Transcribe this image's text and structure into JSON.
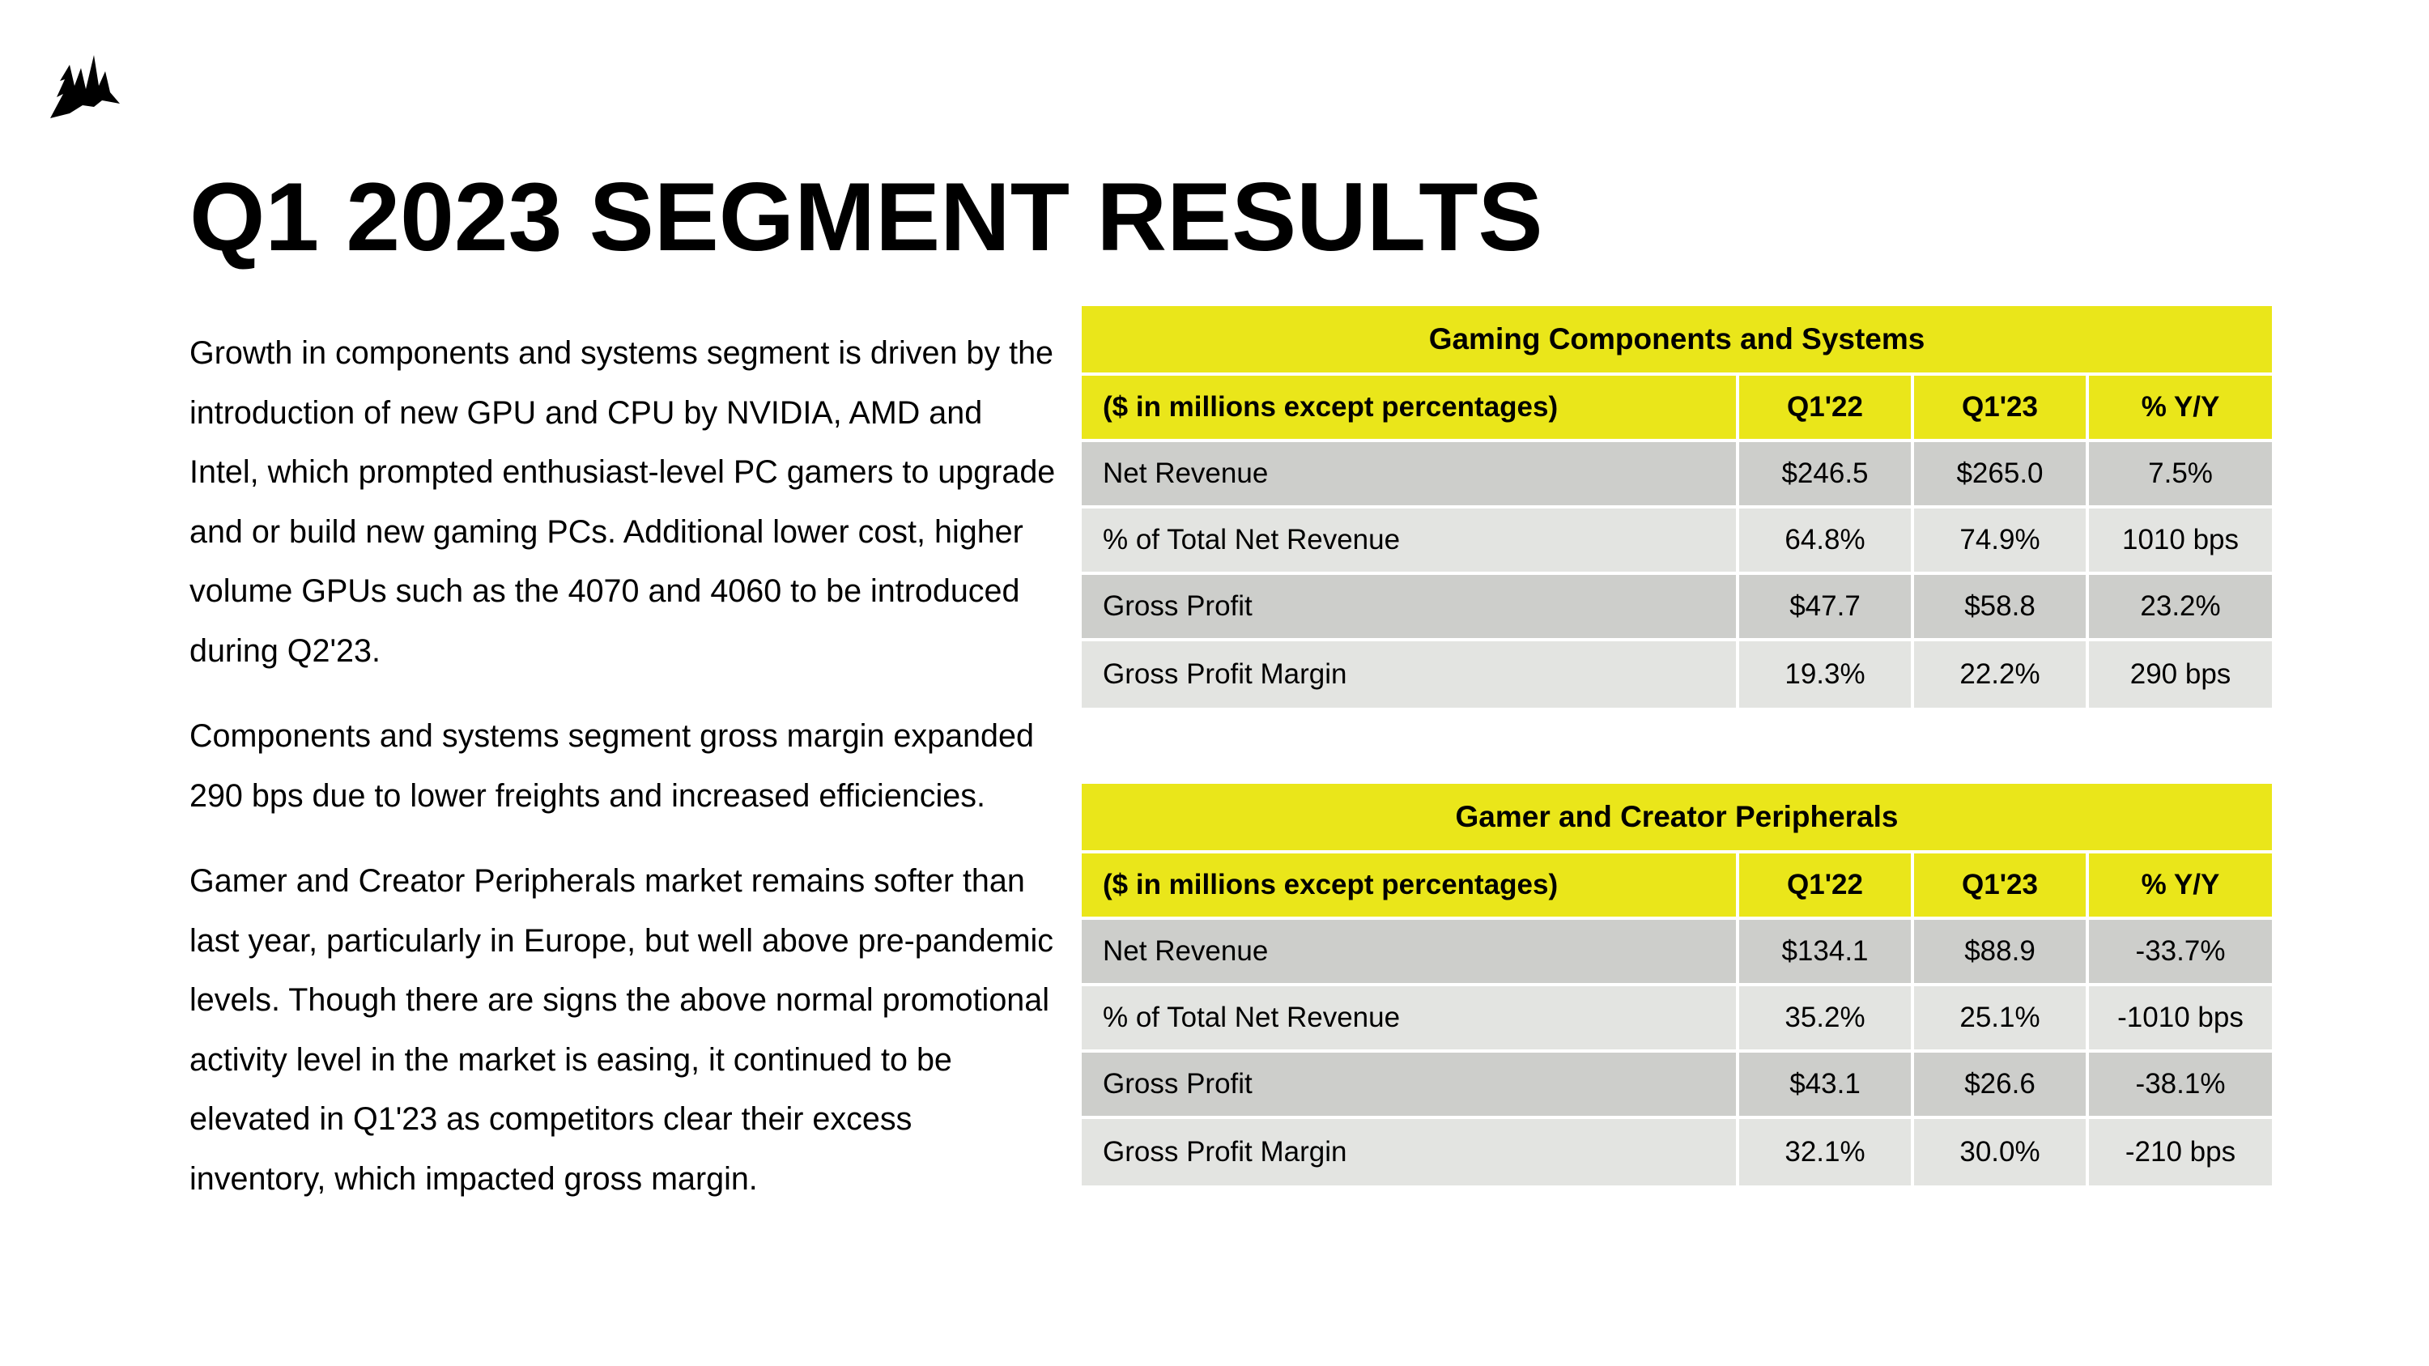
{
  "title": "Q1 2023 SEGMENT RESULTS",
  "logo": {
    "icon": "corsair-sails-logo-icon"
  },
  "paragraphs": [
    "Growth in components and systems segment is driven by the introduction of new GPU and CPU by NVIDIA, AMD and Intel, which prompted enthusiast-level PC gamers to upgrade and or build new gaming PCs.  Additional lower cost, higher volume GPUs such as the 4070 and 4060 to be introduced during Q2'23.",
    "Components and systems segment gross margin expanded 290 bps due to lower freights and increased efficiencies.",
    "Gamer and Creator Peripherals market remains softer than last year, particularly in Europe, but well above pre-pandemic levels.  Though there are signs the above normal promotional activity level in the market is easing, it continued to be elevated in Q1'23 as competitors clear their excess inventory, which impacted gross margin."
  ],
  "colors": {
    "accent_yellow": "#eae61a",
    "row_dark": "#cdcecb",
    "row_light": "#e3e4e1"
  },
  "tables": [
    {
      "caption": "Gaming Components and Systems",
      "headers": [
        "($ in millions except percentages)",
        "Q1'22",
        "Q1'23",
        "% Y/Y"
      ],
      "rows": [
        [
          "Net Revenue",
          "$246.5",
          "$265.0",
          "7.5%"
        ],
        [
          "% of Total Net Revenue",
          "64.8%",
          "74.9%",
          "1010 bps"
        ],
        [
          "Gross Profit",
          "$47.7",
          "$58.8",
          "23.2%"
        ],
        [
          "Gross Profit Margin",
          "19.3%",
          "22.2%",
          "290 bps"
        ]
      ]
    },
    {
      "caption": "Gamer and Creator Peripherals",
      "headers": [
        "($ in millions except percentages)",
        "Q1'22",
        "Q1'23",
        "% Y/Y"
      ],
      "rows": [
        [
          "Net Revenue",
          "$134.1",
          "$88.9",
          "-33.7%"
        ],
        [
          "% of Total Net Revenue",
          "35.2%",
          "25.1%",
          "-1010 bps"
        ],
        [
          "Gross Profit",
          "$43.1",
          "$26.6",
          "-38.1%"
        ],
        [
          "Gross Profit Margin",
          "32.1%",
          "30.0%",
          "-210 bps"
        ]
      ]
    }
  ]
}
